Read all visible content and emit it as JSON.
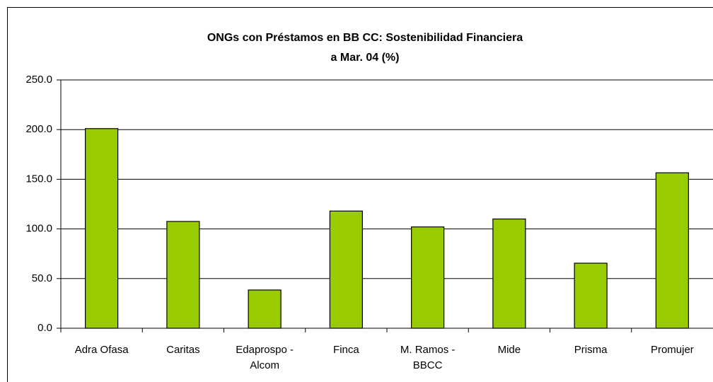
{
  "chart_data": {
    "type": "bar",
    "title": "ONGs con Préstamos en BB CC:  Sostenibilidad Financiera",
    "subtitle": "a  Mar. 04 (%)",
    "categories": [
      "Adra Ofasa",
      "Caritas",
      "Edaprospo - Alcom",
      "Finca",
      "M. Ramos - BBCC",
      "Mide",
      "Prisma",
      "Promujer"
    ],
    "values": [
      201,
      107.5,
      38.5,
      118,
      102,
      110,
      65.5,
      156.5
    ],
    "color": "#99cc00",
    "ylim": [
      0,
      250
    ],
    "yticks": [
      {
        "value": 0,
        "label": "0.0"
      },
      {
        "value": 50,
        "label": "50.0"
      },
      {
        "value": 100,
        "label": "100.0"
      },
      {
        "value": 150,
        "label": "150.0"
      },
      {
        "value": 200,
        "label": "200.0"
      },
      {
        "value": 250,
        "label": "250.0"
      }
    ],
    "grid": true
  }
}
